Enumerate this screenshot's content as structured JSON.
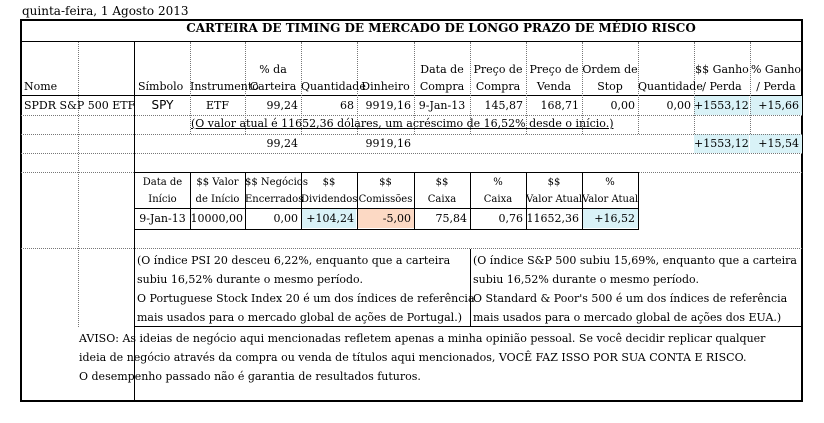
{
  "date": "quinta-feira, 1 Agosto 2013",
  "title": "CARTEIRA DE TIMING DE MERCADO DE LONGO PRAZO DE MÉDIO RISCO",
  "headers": {
    "nome": "Nome",
    "simbolo": "Símbolo",
    "instrumento": "Instrumento",
    "pct_carteira_1": "% da",
    "pct_carteira_2": "Carteira",
    "quantidade": "Quantidade",
    "dinheiro": "Dinheiro",
    "data_compra_1": "Data de",
    "data_compra_2": "Compra",
    "preco_compra_1": "Preço de",
    "preco_compra_2": "Compra",
    "preco_venda_1": "Preço de",
    "preco_venda_2": "Venda",
    "ordem_stop_1": "Ordem de",
    "ordem_stop_2": "Stop",
    "quantidade2": "Quantidade",
    "ganho_1": "$$ Ganho",
    "ganho_2": "/ Perda",
    "pct_ganho_1": "% Ganho",
    "pct_ganho_2": "/ Perda"
  },
  "row": {
    "nome": "SPDR S&P 500 ETF",
    "simbolo": "SPY",
    "instrumento": "ETF",
    "pct_carteira": "99,24",
    "quantidade": "68",
    "dinheiro": "9919,16",
    "data_compra": "9-Jan-13",
    "preco_compra": "145,87",
    "preco_venda": "168,71",
    "ordem_stop": "0,00",
    "quantidade2": "0,00",
    "ganho": "+1553,12",
    "pct_ganho": "+15,66"
  },
  "note_valor": "(O valor atual é 11652,36 dólares, um acréscimo de 16,52% desde o início.)",
  "totals": {
    "pct_carteira": "99,24",
    "dinheiro": "9919,16",
    "ganho": "+1553,12",
    "pct_ganho": "+15,54"
  },
  "summary_headers": {
    "data_inicio_1": "Data de",
    "data_inicio_2": "Início",
    "valor_inicio_1": "$$ Valor",
    "valor_inicio_2": "de Início",
    "negocios_1": "$$ Negócios",
    "negocios_2": "Encerrados",
    "dividendos_1": "$$",
    "dividendos_2": "Dividendos",
    "comissoes_1": "$$",
    "comissoes_2": "Comissões",
    "caixa_1": "$$",
    "caixa_2": "Caixa",
    "pct_caixa_1": "%",
    "pct_caixa_2": "Caixa",
    "valor_atual_1": "$$",
    "valor_atual_2": "Valor Atual",
    "pct_valor_1": "%",
    "pct_valor_2": "Valor Atual"
  },
  "summary_row": {
    "data_inicio": "9-Jan-13",
    "valor_inicio": "10000,00",
    "negocios": "0,00",
    "dividendos": "+104,24",
    "comissoes": "-5,00",
    "caixa": "75,84",
    "pct_caixa": "0,76",
    "valor_atual": "11652,36",
    "pct_valor": "+16,52"
  },
  "notes_left": [
    "(O índice PSI 20 desceu 6,22%, enquanto que a carteira",
    "subiu 16,52% durante o mesmo período.",
    "O Portuguese Stock Index 20 é um dos índices de referência",
    "mais usados para o mercado global de ações de Portugal.)"
  ],
  "notes_right": [
    "(O índice S&P 500 subiu 15,69%, enquanto que a carteira",
    "subiu 16,52% durante o mesmo período.",
    "O Standard & Poor's 500 é um dos índices de referência",
    "mais usados para o mercado global de ações dos EUA.)"
  ],
  "disclaimer": [
    "AVISO: As ideias de negócio aqui mencionadas refletem apenas a minha opinião pessoal. Se você decidir replicar qualquer",
    "ideia de negócio através da compra ou venda de títulos aqui mencionados, VOCÊ FAZ ISSO POR SUA CONTA E RISCO.",
    "O desempenho passado não é garantia de resultados futuros."
  ],
  "colors": {
    "highlight_positive": "#d9f2f7",
    "highlight_negative": "#fcd9c4"
  }
}
